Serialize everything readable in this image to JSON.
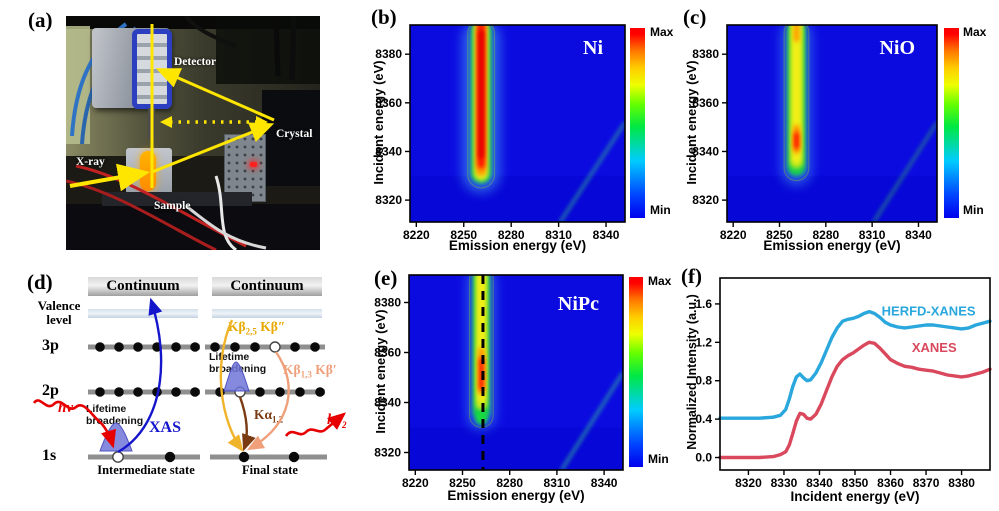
{
  "panels": {
    "a": "(a)",
    "b": "(b)",
    "c": "(c)",
    "d": "(d)",
    "e": "(e)",
    "f": "(f)"
  },
  "panel_a": {
    "labels": {
      "detector": "Detector",
      "crystal": "Crystal",
      "xray": "X-ray",
      "sample": "Sample"
    },
    "beam_color": "#ffe600"
  },
  "panel_d": {
    "continuum_left": "Continuum",
    "continuum_right": "Continuum",
    "valence": "Valence level",
    "levels": {
      "l3p": "3p",
      "l2p": "2p",
      "l1s": "1s"
    },
    "lifetime_left": "Lifetime broadening",
    "lifetime_right": "Lifetime broadening",
    "xas": "XAS",
    "hv": {
      "main": "hν"
    },
    "hv2": {
      "main": "hν",
      "sub": "2"
    },
    "kb25": {
      "k1": "Kβ",
      "s1": "2,5",
      "k2": "Kβ",
      "p2": "″"
    },
    "kb13": {
      "k1": "Kβ",
      "s1": "1,3",
      "k2": "Kβ",
      "p2": "′"
    },
    "ka12": {
      "k": "Kα",
      "s": "1,2"
    },
    "intermediate": "Intermediate state",
    "final": "Final state",
    "colors": {
      "xas": "#1515cc",
      "hv": "#e60000",
      "kb25": "#e8a800",
      "kb13": "#efa07a",
      "ka12": "#7a3a12"
    }
  },
  "chart_data": [
    {
      "panel": "b",
      "type": "heatmap",
      "title": "Ni",
      "xlabel": "Emission energy (eV)",
      "ylabel": "Incident energy (eV)",
      "xlim": [
        8216,
        8352
      ],
      "ylim": [
        8311,
        8392
      ],
      "x_ticks": [
        8220,
        8250,
        8280,
        8310,
        8340
      ],
      "y_ticks": [
        8320,
        8340,
        8360,
        8380
      ],
      "background": "#0b0be0",
      "band_center": 8261,
      "layers": [
        {
          "color": "#55ccf5",
          "w": 24,
          "y0": 8323,
          "y1": 8394,
          "o": 0.45,
          "blur": "big"
        },
        {
          "color": "#17dd3e",
          "w": 13,
          "y0": 8327,
          "y1": 8394,
          "o": 0.9
        },
        {
          "color": "#e8f01c",
          "w": 9,
          "y0": 8328,
          "y1": 8394,
          "o": 0.95
        },
        {
          "color": "#ff9a00",
          "w": 6.5,
          "y0": 8330,
          "y1": 8394,
          "o": 1
        },
        {
          "color": "#ff1500",
          "w": 4.8,
          "y0": 8333,
          "y1": 8394,
          "o": 1
        },
        {
          "color": "#e00000",
          "w": 3.4,
          "y0": 8337,
          "y1": 8390,
          "o": 1
        }
      ],
      "contour": {
        "color": "#7c7c34",
        "w": 17,
        "y0": 8325,
        "y1": 8394
      },
      "elastic": "#34b98a",
      "colorbar": {
        "max": "Max",
        "min": "Min"
      }
    },
    {
      "panel": "c",
      "type": "heatmap",
      "title": "NiO",
      "xlabel": "Emission energy (eV)",
      "ylabel": "Incident energy (eV)",
      "xlim": [
        8216,
        8352
      ],
      "ylim": [
        8311,
        8392
      ],
      "x_ticks": [
        8220,
        8250,
        8280,
        8310,
        8340
      ],
      "y_ticks": [
        8320,
        8340,
        8360,
        8380
      ],
      "background": "#0b0be0",
      "band_center": 8261,
      "layers": [
        {
          "color": "#55ccf5",
          "w": 20,
          "y0": 8326,
          "y1": 8394,
          "o": 0.4,
          "blur": "big"
        },
        {
          "color": "#17dd3e",
          "w": 12,
          "y0": 8330,
          "y1": 8394,
          "o": 0.9
        },
        {
          "color": "#b8e81c",
          "w": 8.5,
          "y0": 8333,
          "y1": 8394,
          "o": 0.95
        },
        {
          "color": "#f2ee18",
          "w": 6,
          "y0": 8335,
          "y1": 8394,
          "o": 1
        },
        {
          "color": "#ff9a00",
          "w": 4.6,
          "y0": 8339,
          "y1": 8351,
          "o": 1
        },
        {
          "color": "#ff1500",
          "w": 3.4,
          "y0": 8341,
          "y1": 8348,
          "o": 1
        },
        {
          "color": "#ff9a00",
          "w": 4,
          "y0": 8385,
          "y1": 8394,
          "o": 0.9
        }
      ],
      "contour": {
        "color": "#7c7c34",
        "w": 16,
        "y0": 8328,
        "y1": 8394
      },
      "elastic": "#2f9e72",
      "colorbar": {
        "max": "Max",
        "min": "Min"
      }
    },
    {
      "panel": "e",
      "type": "heatmap",
      "title": "NiPc",
      "xlabel": "Emission energy (eV)",
      "ylabel": "Incident energy (eV)",
      "xlim": [
        8216,
        8352
      ],
      "ylim": [
        8313,
        8391
      ],
      "x_ticks": [
        8220,
        8250,
        8280,
        8310,
        8340
      ],
      "y_ticks": [
        8320,
        8340,
        8360,
        8380
      ],
      "background": "#0b0be0",
      "band_center": 8262,
      "dashed_line": 8263,
      "layers": [
        {
          "color": "#55ccf5",
          "w": 18,
          "y0": 8329,
          "y1": 8394,
          "o": 0.4,
          "blur": "big"
        },
        {
          "color": "#17dd3e",
          "w": 11,
          "y0": 8333,
          "y1": 8394,
          "o": 0.9
        },
        {
          "color": "#cdea1c",
          "w": 7.5,
          "y0": 8337,
          "y1": 8394,
          "o": 0.95
        },
        {
          "color": "#f2ee18",
          "w": 5,
          "y0": 8340,
          "y1": 8392,
          "o": 1
        },
        {
          "color": "#ff9a00",
          "w": 4.2,
          "y0": 8343,
          "y1": 8362,
          "o": 1
        },
        {
          "color": "#ff1500",
          "w": 3,
          "y0": 8345,
          "y1": 8358,
          "o": 1
        },
        {
          "color": "#17dd3e",
          "w": 7,
          "y0": 8331,
          "y1": 8336,
          "o": 0.95
        }
      ],
      "contour": {
        "color": "#7c7c34",
        "w": 15,
        "y0": 8330,
        "y1": 8394
      },
      "elastic": "#35c98f",
      "colorbar": {
        "max": "Max",
        "min": "Min"
      }
    },
    {
      "panel": "f",
      "type": "line",
      "xlabel": "Incident energy (eV)",
      "ylabel": "Normalized Intensity (a.u.)",
      "xlim": [
        8312,
        8388
      ],
      "ylim": [
        -0.13,
        1.87
      ],
      "x_ticks": [
        8320,
        8330,
        8340,
        8350,
        8360,
        8370,
        8380
      ],
      "y_ticks": [
        0.0,
        0.4,
        0.8,
        1.2,
        1.6
      ],
      "series": [
        {
          "name": "HERFD-XANES",
          "color": "#2aa7dc",
          "label_x": 8357.5,
          "label_y": 1.48,
          "x": [
            8312,
            8318,
            8323,
            8327,
            8329,
            8330.5,
            8331.5,
            8332.5,
            8333.5,
            8334.5,
            8335.5,
            8336.5,
            8337.5,
            8339,
            8340.5,
            8342,
            8343.5,
            8345,
            8346.5,
            8348,
            8349.5,
            8351,
            8352.5,
            8354,
            8355.5,
            8357,
            8358.5,
            8360,
            8362,
            8364,
            8366,
            8368,
            8370,
            8372,
            8374,
            8376,
            8378,
            8380,
            8382,
            8384,
            8386,
            8388
          ],
          "y": [
            0.41,
            0.41,
            0.41,
            0.42,
            0.44,
            0.5,
            0.61,
            0.74,
            0.84,
            0.87,
            0.83,
            0.8,
            0.81,
            0.88,
            0.99,
            1.12,
            1.25,
            1.35,
            1.42,
            1.44,
            1.45,
            1.47,
            1.5,
            1.52,
            1.5,
            1.46,
            1.41,
            1.38,
            1.36,
            1.35,
            1.36,
            1.37,
            1.38,
            1.38,
            1.37,
            1.36,
            1.35,
            1.34,
            1.35,
            1.38,
            1.4,
            1.42
          ]
        },
        {
          "name": "XANES",
          "color": "#d9485c",
          "label_x": 8366,
          "label_y": 1.1,
          "x": [
            8312,
            8318,
            8323,
            8327,
            8329,
            8330.5,
            8331.5,
            8332.5,
            8333.5,
            8334.5,
            8335.5,
            8336.5,
            8337.5,
            8339,
            8340.5,
            8342,
            8343.5,
            8345,
            8346.5,
            8348,
            8349.5,
            8351,
            8352.5,
            8354,
            8355.5,
            8357,
            8358.5,
            8360,
            8362,
            8364,
            8366,
            8368,
            8370,
            8372,
            8374,
            8376,
            8378,
            8380,
            8382,
            8384,
            8386,
            8388
          ],
          "y": [
            0.0,
            0.0,
            0.0,
            0.01,
            0.03,
            0.06,
            0.13,
            0.25,
            0.38,
            0.46,
            0.45,
            0.41,
            0.4,
            0.45,
            0.56,
            0.7,
            0.84,
            0.95,
            1.02,
            1.06,
            1.09,
            1.13,
            1.17,
            1.2,
            1.19,
            1.14,
            1.08,
            1.02,
            0.98,
            0.95,
            0.94,
            0.92,
            0.91,
            0.9,
            0.88,
            0.86,
            0.85,
            0.84,
            0.85,
            0.87,
            0.89,
            0.92
          ]
        }
      ]
    }
  ]
}
